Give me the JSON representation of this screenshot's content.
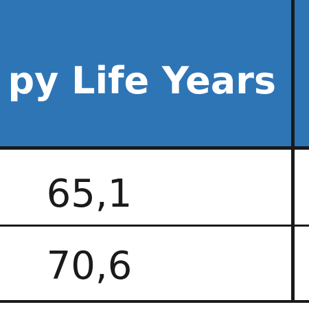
{
  "table": {
    "header": [
      "py Life Years"
    ],
    "rows": [
      [
        "65,1"
      ],
      [
        "70,6"
      ]
    ]
  }
}
